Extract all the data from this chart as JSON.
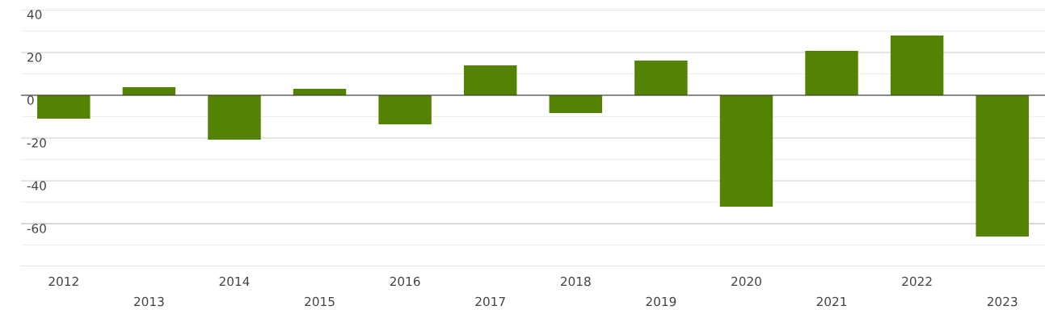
{
  "chart_data": {
    "type": "bar",
    "categories": [
      "2012",
      "2013",
      "2014",
      "2015",
      "2016",
      "2017",
      "2018",
      "2019",
      "2020",
      "2021",
      "2022",
      "2023"
    ],
    "values": [
      -10.9,
      3.8,
      -20.8,
      3.0,
      -13.6,
      14.0,
      -8.3,
      16.2,
      -52.1,
      20.8,
      27.9,
      -66.0
    ],
    "color": "#548202",
    "ylim": [
      -80,
      40
    ],
    "yticks": [
      -60,
      -40,
      -20,
      0,
      20,
      40
    ],
    "grid": "y"
  }
}
